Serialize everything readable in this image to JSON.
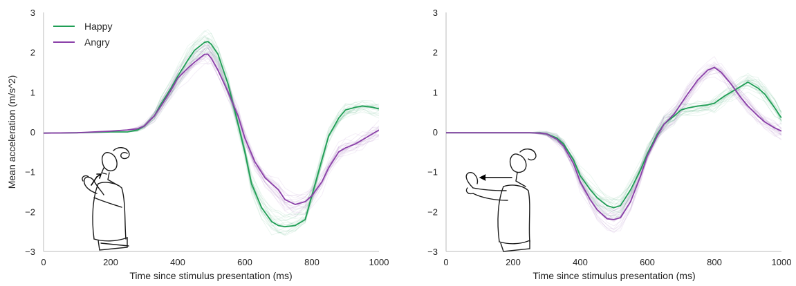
{
  "colors": {
    "happy": "#1f9e55",
    "angry": "#8a3fa8"
  },
  "chart_data": [
    {
      "type": "line",
      "title": "",
      "xlabel": "Time since stimulus presentation (ms)",
      "ylabel": "Mean acceleration (m/s^2)",
      "xlim": [
        0,
        1000
      ],
      "ylim": [
        -3,
        3
      ],
      "xticks": [
        "0",
        "200",
        "400",
        "600",
        "800",
        "1000"
      ],
      "yticks": [
        "3",
        "2",
        "1",
        "0",
        "−1",
        "−2",
        "−3"
      ],
      "legend": {
        "position": "top-left",
        "entries": [
          "Happy",
          "Angry"
        ]
      },
      "series": [
        {
          "name": "Happy",
          "color_key": "happy",
          "x": [
            0,
            100,
            200,
            250,
            280,
            300,
            330,
            350,
            380,
            400,
            430,
            450,
            480,
            490,
            500,
            520,
            550,
            580,
            600,
            620,
            650,
            680,
            700,
            720,
            750,
            780,
            800,
            830,
            850,
            880,
            900,
            930,
            950,
            980,
            1000
          ],
          "y": [
            -0.03,
            -0.02,
            0.0,
            0.0,
            0.05,
            0.15,
            0.4,
            0.7,
            1.1,
            1.4,
            1.8,
            2.05,
            2.25,
            2.27,
            2.2,
            1.95,
            1.2,
            0.2,
            -0.5,
            -1.3,
            -1.9,
            -2.25,
            -2.35,
            -2.38,
            -2.35,
            -2.2,
            -1.6,
            -0.7,
            -0.1,
            0.35,
            0.55,
            0.62,
            0.65,
            0.62,
            0.58
          ]
        },
        {
          "name": "Angry",
          "color_key": "angry",
          "x": [
            0,
            100,
            200,
            250,
            280,
            300,
            330,
            350,
            380,
            400,
            430,
            450,
            480,
            490,
            500,
            520,
            550,
            580,
            600,
            630,
            660,
            700,
            720,
            750,
            780,
            800,
            830,
            850,
            880,
            900,
            930,
            950,
            980,
            1000
          ],
          "y": [
            -0.03,
            -0.02,
            0.02,
            0.05,
            0.08,
            0.15,
            0.4,
            0.65,
            1.05,
            1.35,
            1.6,
            1.75,
            1.95,
            1.95,
            1.85,
            1.55,
            1.0,
            0.4,
            -0.15,
            -0.75,
            -1.15,
            -1.45,
            -1.7,
            -1.82,
            -1.75,
            -1.6,
            -1.25,
            -0.9,
            -0.5,
            -0.4,
            -0.3,
            -0.2,
            -0.05,
            0.05
          ]
        }
      ]
    },
    {
      "type": "line",
      "title": "",
      "xlabel": "Time since stimulus presentation (ms)",
      "ylabel": "",
      "xlim": [
        0,
        1000
      ],
      "ylim": [
        -3,
        3
      ],
      "xticks": [
        "0",
        "200",
        "400",
        "600",
        "800",
        "1000"
      ],
      "yticks": [
        "3",
        "2",
        "1",
        "0",
        "−1",
        "−2",
        "−3"
      ],
      "series": [
        {
          "name": "Happy",
          "color_key": "happy",
          "x": [
            0,
            100,
            200,
            250,
            280,
            300,
            330,
            350,
            380,
            400,
            430,
            450,
            480,
            500,
            520,
            550,
            580,
            600,
            630,
            650,
            680,
            700,
            720,
            750,
            780,
            800,
            830,
            850,
            880,
            900,
            930,
            950,
            980,
            1000
          ],
          "y": [
            -0.02,
            -0.02,
            -0.02,
            -0.02,
            -0.03,
            -0.05,
            -0.15,
            -0.3,
            -0.7,
            -1.1,
            -1.45,
            -1.65,
            -1.85,
            -1.9,
            -1.85,
            -1.45,
            -0.95,
            -0.55,
            -0.05,
            0.2,
            0.4,
            0.55,
            0.6,
            0.65,
            0.68,
            0.72,
            0.9,
            1.0,
            1.15,
            1.25,
            1.1,
            0.95,
            0.6,
            0.35
          ]
        },
        {
          "name": "Angry",
          "color_key": "angry",
          "x": [
            0,
            100,
            200,
            250,
            280,
            300,
            330,
            350,
            380,
            400,
            430,
            450,
            480,
            500,
            520,
            550,
            580,
            600,
            630,
            650,
            680,
            700,
            720,
            750,
            780,
            800,
            820,
            850,
            880,
            900,
            930,
            950,
            980,
            1000
          ],
          "y": [
            -0.02,
            -0.02,
            -0.02,
            -0.02,
            -0.03,
            -0.05,
            -0.18,
            -0.35,
            -0.8,
            -1.25,
            -1.7,
            -1.95,
            -2.18,
            -2.2,
            -2.15,
            -1.75,
            -1.1,
            -0.6,
            -0.1,
            0.2,
            0.45,
            0.7,
            0.95,
            1.3,
            1.55,
            1.62,
            1.5,
            1.2,
            0.85,
            0.65,
            0.4,
            0.25,
            0.1,
            0.02
          ]
        }
      ]
    }
  ]
}
